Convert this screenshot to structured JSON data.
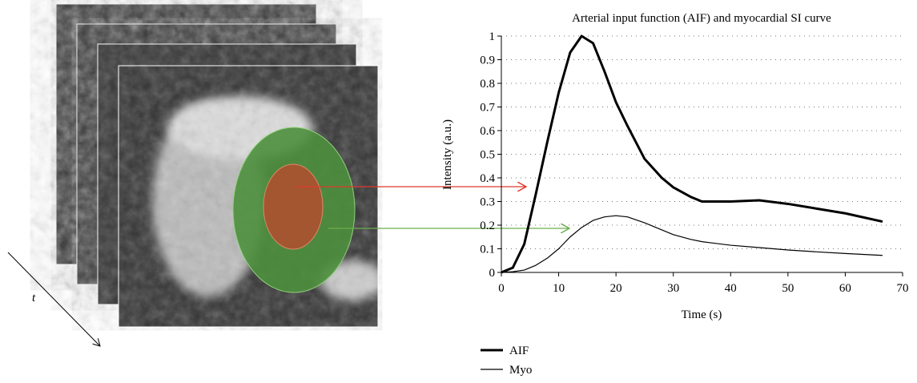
{
  "image_axis_label": "t",
  "chart_data": {
    "type": "line",
    "title": "Arterial input function (AIF) and myocardial SI curve",
    "x_label": "Time (s)",
    "y_label": "Intensity (a.u.)",
    "x": [
      0,
      2,
      4,
      6,
      8,
      10,
      12,
      14,
      16,
      18,
      20,
      22,
      25,
      28,
      30,
      33,
      35,
      40,
      45,
      50,
      55,
      60,
      66.5
    ],
    "series": [
      {
        "name": "AIF",
        "color": "#000000",
        "linewidth": 3,
        "values": [
          0,
          0.02,
          0.12,
          0.33,
          0.55,
          0.76,
          0.93,
          1.0,
          0.97,
          0.85,
          0.72,
          0.62,
          0.48,
          0.4,
          0.36,
          0.32,
          0.3,
          0.3,
          0.305,
          0.29,
          0.27,
          0.25,
          0.215
        ]
      },
      {
        "name": "Myo",
        "color": "#000000",
        "linewidth": 1.2,
        "values": [
          0,
          0.003,
          0.01,
          0.03,
          0.06,
          0.1,
          0.15,
          0.19,
          0.22,
          0.235,
          0.24,
          0.235,
          0.21,
          0.18,
          0.16,
          0.14,
          0.13,
          0.115,
          0.105,
          0.095,
          0.087,
          0.08,
          0.072
        ]
      }
    ],
    "xlim": [
      0,
      70
    ],
    "xticks": [
      0,
      10,
      20,
      30,
      40,
      50,
      60,
      70
    ],
    "ylim": [
      0,
      1
    ],
    "yticks": [
      0,
      0.1,
      0.2,
      0.3,
      0.4,
      0.5,
      0.6,
      0.7,
      0.8,
      0.9,
      1
    ],
    "grid": true,
    "legend": "below"
  }
}
